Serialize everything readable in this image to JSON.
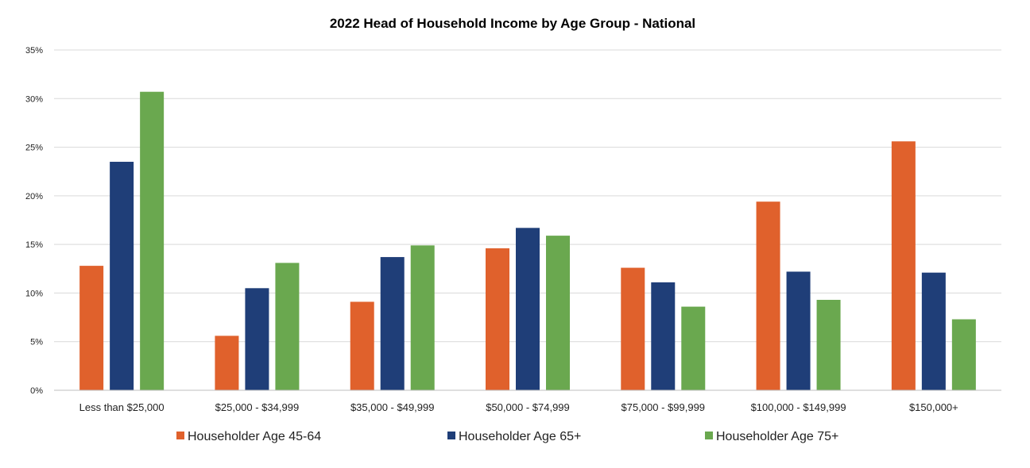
{
  "chart_data": {
    "type": "bar",
    "title": "2022 Head of Household Income by Age Group - National",
    "xlabel": "",
    "ylabel": "",
    "ylim": [
      0,
      35
    ],
    "y_ticks": [
      "0%",
      "5%",
      "10%",
      "15%",
      "20%",
      "25%",
      "30%",
      "35%"
    ],
    "y_tick_values": [
      0,
      5,
      10,
      15,
      20,
      25,
      30,
      35
    ],
    "grid": true,
    "legend_position": "bottom",
    "categories": [
      "Less than $25,000",
      "$25,000 - $34,999",
      "$35,000 - $49,999",
      "$50,000 - $74,999",
      "$75,000 - $99,999",
      "$100,000 - $149,999",
      "$150,000+"
    ],
    "series": [
      {
        "name": "Householder Age 45-64",
        "color": "#E0612C",
        "values": [
          12.8,
          5.6,
          9.1,
          14.6,
          12.6,
          19.4,
          25.6
        ]
      },
      {
        "name": "Householder Age 65+",
        "color": "#1F3E78",
        "values": [
          23.5,
          10.5,
          13.7,
          16.7,
          11.1,
          12.2,
          12.1
        ]
      },
      {
        "name": "Householder Age 75+",
        "color": "#6AA84F",
        "values": [
          30.7,
          13.1,
          14.9,
          15.9,
          8.6,
          9.3,
          7.3
        ]
      }
    ]
  }
}
